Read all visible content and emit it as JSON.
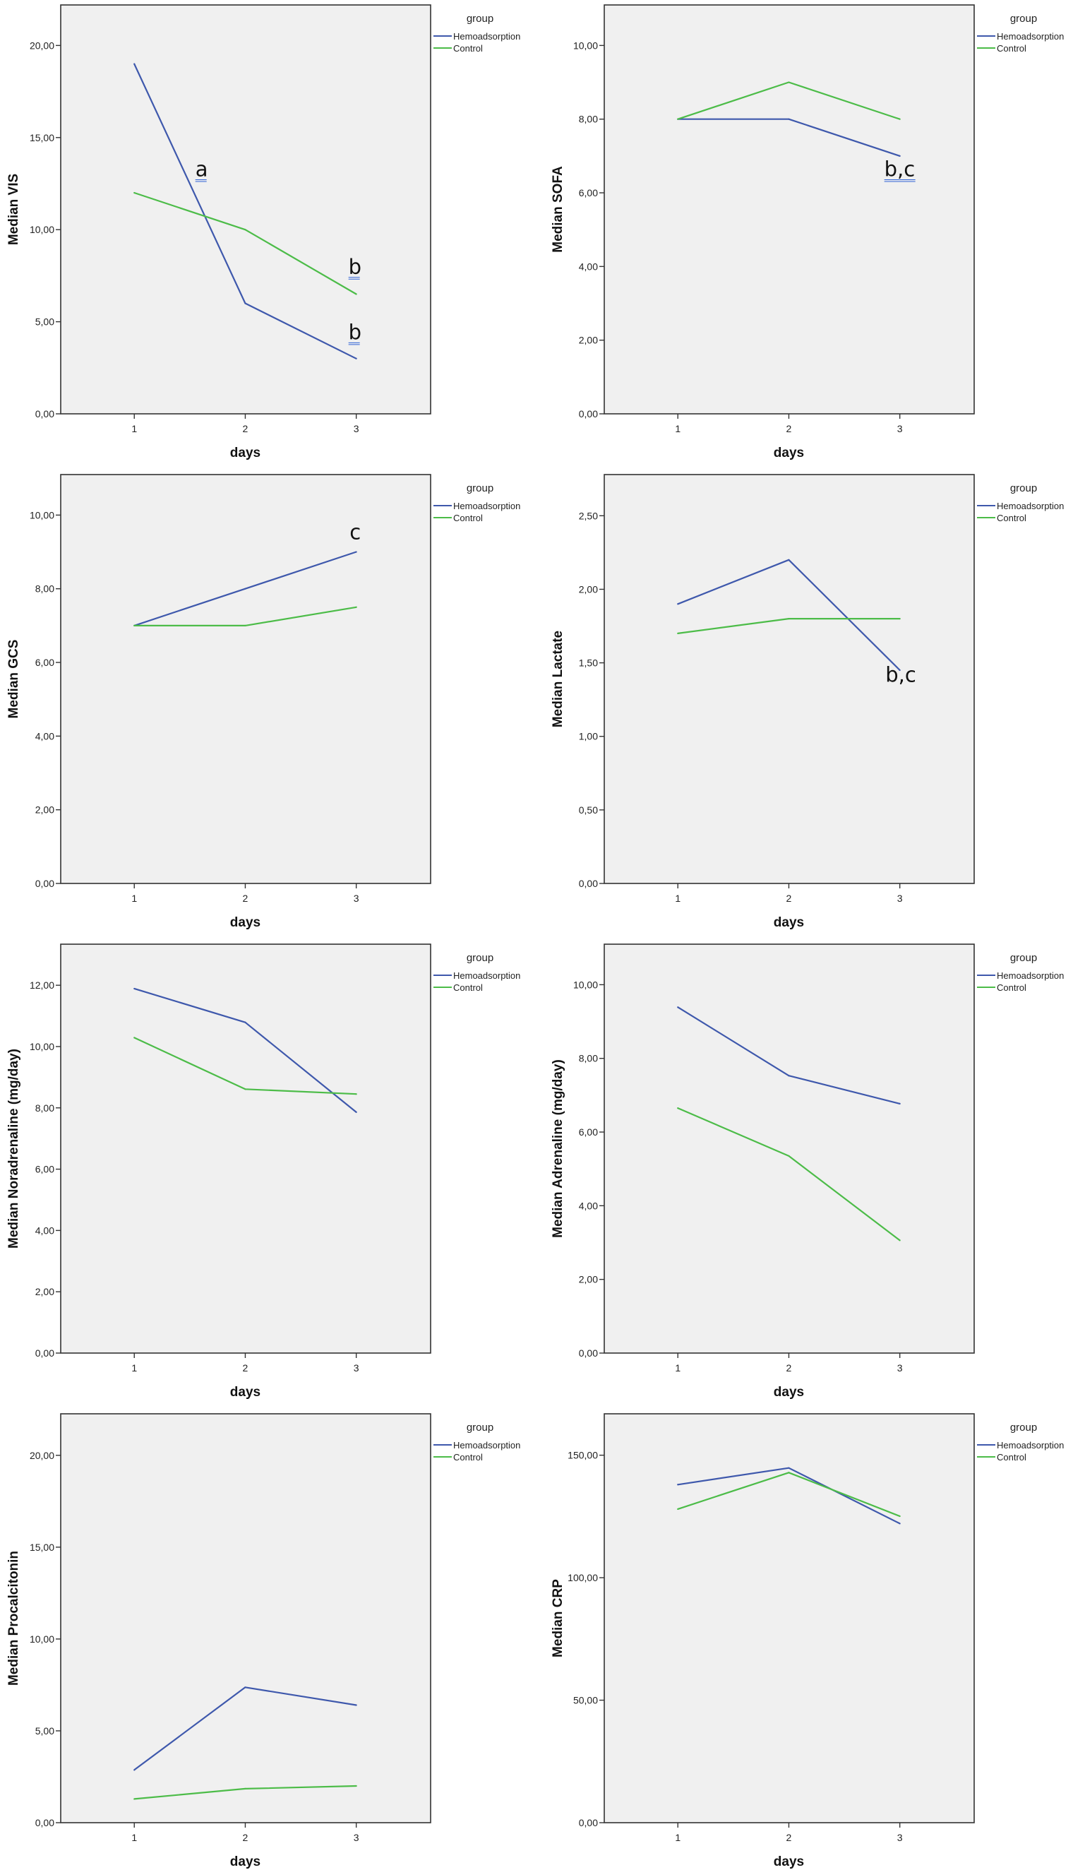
{
  "colors": {
    "hemoadsorption": "#3e58ac",
    "control": "#4cbc48",
    "plot_background": "#f0f0f0",
    "frame": "#333333",
    "annotation_underline": "#2f62d6"
  },
  "chart_data": [
    {
      "type": "line",
      "title": "",
      "xlabel": "days",
      "ylabel": "Median VIS",
      "categories": [
        "1",
        "2",
        "3"
      ],
      "x": [
        1,
        2,
        3
      ],
      "ylim": [
        0,
        22.2
      ],
      "yticks": [
        0,
        5,
        10,
        15,
        20
      ],
      "ytick_labels": [
        "0,00",
        "5,00",
        "10,00",
        "15,00",
        "20,00"
      ],
      "legend": {
        "title": "group",
        "placement": "right",
        "entries": [
          "Hemoadsorption",
          "Control"
        ]
      },
      "series": [
        {
          "name": "Hemoadsorption",
          "values": [
            19,
            6,
            3
          ]
        },
        {
          "name": "Control",
          "values": [
            12,
            10,
            6.5
          ]
        }
      ],
      "annotations": [
        {
          "text": "a",
          "x": 1.55,
          "y": 12.9,
          "underline": true
        },
        {
          "text": "b",
          "x": 2.93,
          "y": 7.6,
          "underline": true
        },
        {
          "text": "b",
          "x": 2.93,
          "y": 4.05,
          "underline": true
        }
      ],
      "grid": false
    },
    {
      "type": "line",
      "title": "",
      "xlabel": "days",
      "ylabel": "Median SOFA",
      "categories": [
        "1",
        "2",
        "3"
      ],
      "x": [
        1,
        2,
        3
      ],
      "ylim": [
        0,
        11.1
      ],
      "yticks": [
        0,
        2,
        4,
        6,
        8,
        10
      ],
      "ytick_labels": [
        "0,00",
        "2,00",
        "4,00",
        "6,00",
        "8,00",
        "10,00"
      ],
      "legend": {
        "title": "group",
        "placement": "right",
        "entries": [
          "Hemoadsorption",
          "Control"
        ]
      },
      "series": [
        {
          "name": "Hemoadsorption",
          "values": [
            8,
            8,
            7
          ]
        },
        {
          "name": "Control",
          "values": [
            8,
            9,
            8
          ]
        }
      ],
      "annotations": [
        {
          "text": "b,c",
          "x": 2.86,
          "y": 6.45,
          "underline": true
        }
      ],
      "grid": false
    },
    {
      "type": "line",
      "title": "",
      "xlabel": "days",
      "ylabel": "Median GCS",
      "categories": [
        "1",
        "2",
        "3"
      ],
      "x": [
        1,
        2,
        3
      ],
      "ylim": [
        0,
        11.1
      ],
      "yticks": [
        0,
        2,
        4,
        6,
        8,
        10
      ],
      "ytick_labels": [
        "0,00",
        "2,00",
        "4,00",
        "6,00",
        "8,00",
        "10,00"
      ],
      "legend": {
        "title": "group",
        "placement": "right",
        "entries": [
          "Hemoadsorption",
          "Control"
        ]
      },
      "series": [
        {
          "name": "Hemoadsorption",
          "values": [
            7,
            8,
            9
          ]
        },
        {
          "name": "Control",
          "values": [
            7,
            7,
            7.5
          ]
        }
      ],
      "annotations": [
        {
          "text": "c",
          "x": 2.94,
          "y": 9.35,
          "underline": false
        }
      ],
      "grid": false
    },
    {
      "type": "line",
      "title": "",
      "xlabel": "days",
      "ylabel": "Median Lactate",
      "categories": [
        "1",
        "2",
        "3"
      ],
      "x": [
        1,
        2,
        3
      ],
      "ylim": [
        0,
        2.78
      ],
      "yticks": [
        0,
        0.5,
        1,
        1.5,
        2,
        2.5
      ],
      "ytick_labels": [
        "0,00",
        "0,50",
        "1,00",
        "1,50",
        "2,00",
        "2,50"
      ],
      "legend": {
        "title": "group",
        "placement": "right",
        "entries": [
          "Hemoadsorption",
          "Control"
        ]
      },
      "series": [
        {
          "name": "Hemoadsorption",
          "values": [
            1.9,
            2.2,
            1.45
          ]
        },
        {
          "name": "Control",
          "values": [
            1.7,
            1.8,
            1.8
          ]
        }
      ],
      "annotations": [
        {
          "text": "b,c",
          "x": 2.87,
          "y": 1.37,
          "underline": false
        }
      ],
      "grid": false
    },
    {
      "type": "line",
      "title": "",
      "xlabel": "days",
      "ylabel": "Median Noradrenaline (mg/day)",
      "categories": [
        "1",
        "2",
        "3"
      ],
      "x": [
        1,
        2,
        3
      ],
      "ylim": [
        0,
        13.34
      ],
      "yticks": [
        0,
        2,
        4,
        6,
        8,
        10,
        12
      ],
      "ytick_labels": [
        "0,00",
        "2,00",
        "4,00",
        "6,00",
        "8,00",
        "10,00",
        "12,00"
      ],
      "legend": {
        "title": "group",
        "placement": "right",
        "entries": [
          "Hemoadsorption",
          "Control"
        ]
      },
      "series": [
        {
          "name": "Hemoadsorption",
          "values": [
            11.89,
            10.79,
            7.86
          ]
        },
        {
          "name": "Control",
          "values": [
            10.29,
            8.61,
            8.45
          ]
        }
      ],
      "annotations": [],
      "grid": false
    },
    {
      "type": "line",
      "title": "",
      "xlabel": "days",
      "ylabel": "Median Adrenaline (mg/day)",
      "categories": [
        "1",
        "2",
        "3"
      ],
      "x": [
        1,
        2,
        3
      ],
      "ylim": [
        0,
        11.1
      ],
      "yticks": [
        0,
        2,
        4,
        6,
        8,
        10
      ],
      "ytick_labels": [
        "0,00",
        "2,00",
        "4,00",
        "6,00",
        "8,00",
        "10,00"
      ],
      "legend": {
        "title": "group",
        "placement": "right",
        "entries": [
          "Hemoadsorption",
          "Control"
        ]
      },
      "series": [
        {
          "name": "Hemoadsorption",
          "values": [
            9.39,
            7.53,
            6.77
          ]
        },
        {
          "name": "Control",
          "values": [
            6.65,
            5.35,
            3.06
          ]
        }
      ],
      "annotations": [],
      "grid": false
    },
    {
      "type": "line",
      "title": "",
      "xlabel": "days",
      "ylabel": "Median Procalcitonin",
      "categories": [
        "1",
        "2",
        "3"
      ],
      "x": [
        1,
        2,
        3
      ],
      "ylim": [
        0,
        22.26
      ],
      "yticks": [
        0,
        5,
        10,
        15,
        20
      ],
      "ytick_labels": [
        "0,00",
        "5,00",
        "10,00",
        "15,00",
        "20,00"
      ],
      "legend": {
        "title": "group",
        "placement": "right",
        "entries": [
          "Hemoadsorption",
          "Control"
        ]
      },
      "series": [
        {
          "name": "Hemoadsorption",
          "values": [
            2.87,
            7.37,
            6.4
          ]
        },
        {
          "name": "Control",
          "values": [
            1.29,
            1.85,
            2.0
          ]
        }
      ],
      "annotations": [],
      "grid": false
    },
    {
      "type": "line",
      "title": "",
      "xlabel": "days",
      "ylabel": "Median CRP",
      "categories": [
        "1",
        "2",
        "3"
      ],
      "x": [
        1,
        2,
        3
      ],
      "ylim": [
        0,
        166.9
      ],
      "yticks": [
        0,
        50,
        100,
        150
      ],
      "ytick_labels": [
        "0,00",
        "50,00",
        "100,00",
        "150,00"
      ],
      "legend": {
        "title": "group",
        "placement": "right",
        "entries": [
          "Hemoadsorption",
          "Control"
        ]
      },
      "series": [
        {
          "name": "Hemoadsorption",
          "values": [
            138,
            144.8,
            122.1
          ]
        },
        {
          "name": "Control",
          "values": [
            128,
            142.9,
            125.1
          ]
        }
      ],
      "annotations": [],
      "grid": false
    }
  ]
}
